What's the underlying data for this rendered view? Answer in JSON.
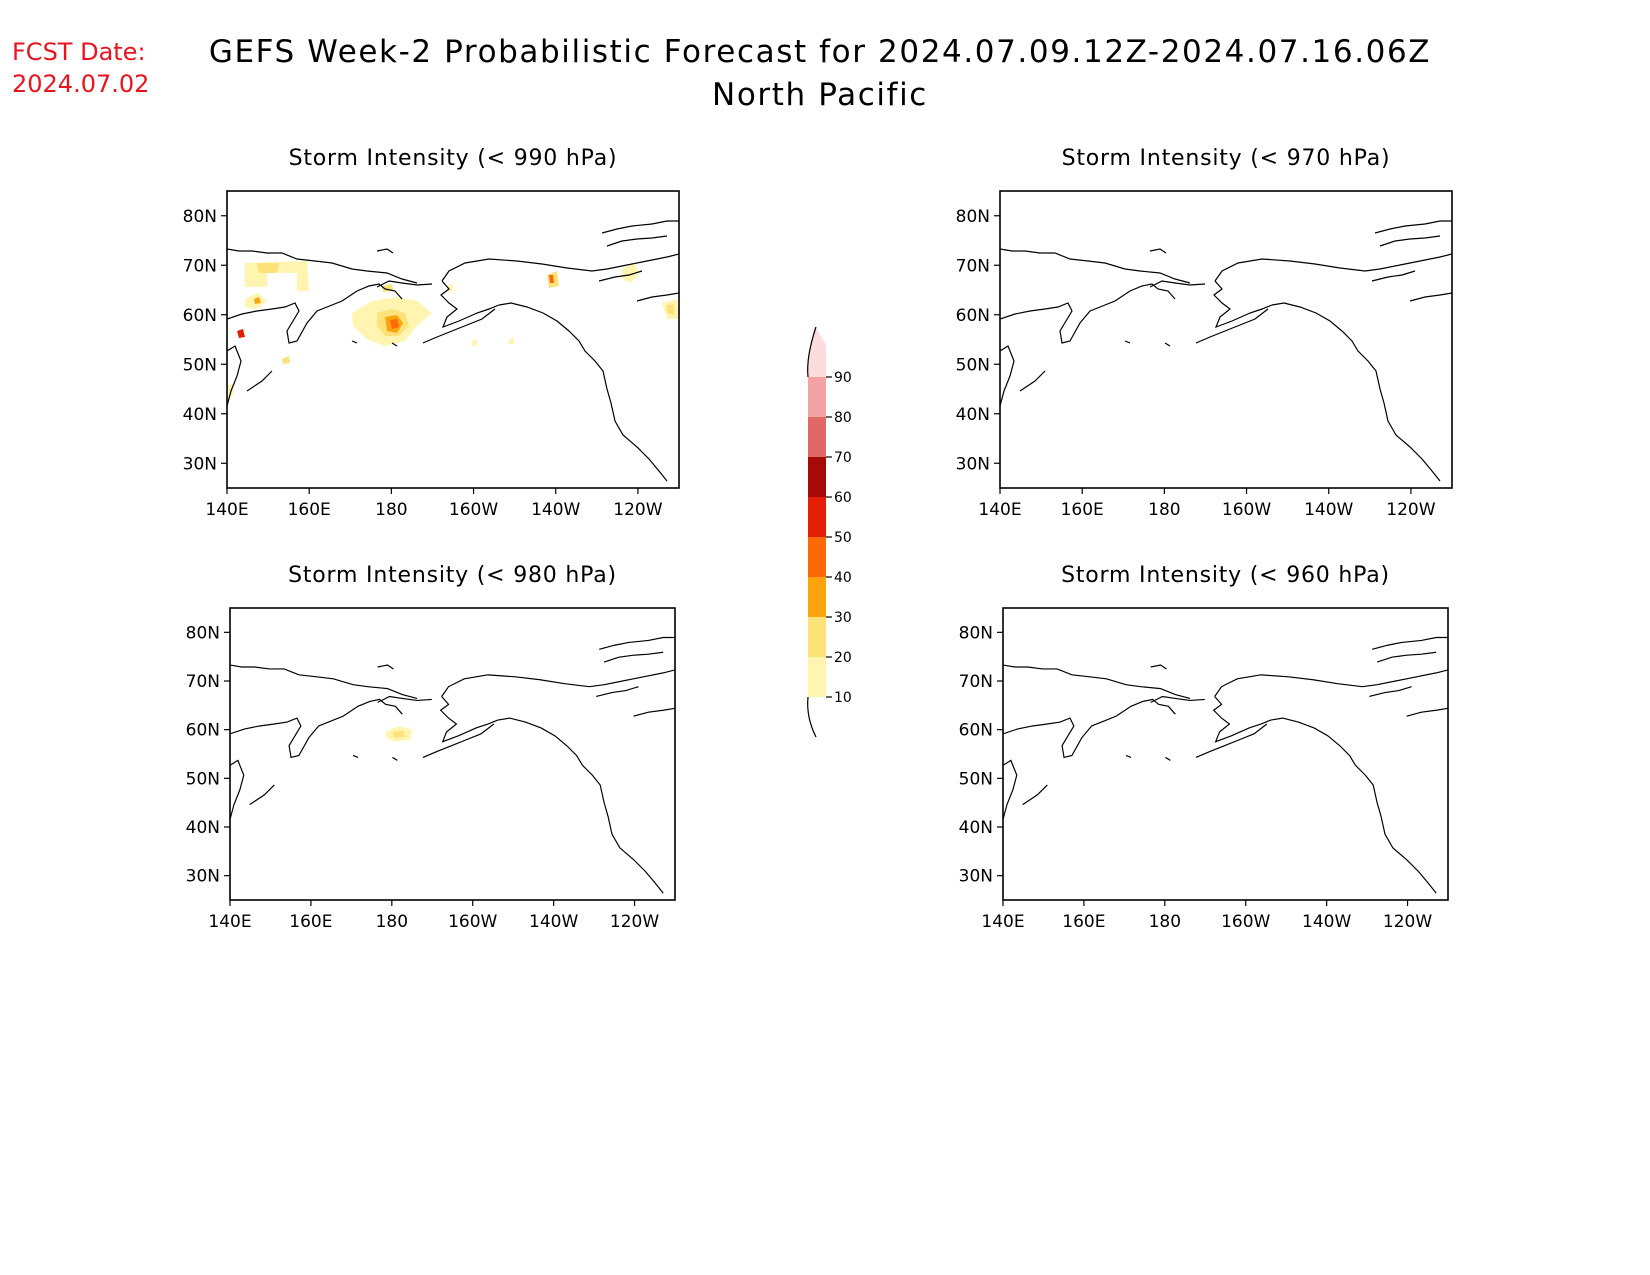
{
  "header": {
    "fcst_label": "FCST Date:",
    "fcst_date": "2024.07.02",
    "title_line1": "GEFS Week-2 Probabilistic Forecast for 2024.07.09.12Z-2024.07.16.06Z",
    "title_line2": "North Pacific",
    "fcst_color": "#e8141e"
  },
  "panels": [
    {
      "id": "p990",
      "title": "Storm Intensity (< 990 hPa)"
    },
    {
      "id": "p970",
      "title": "Storm Intensity (< 970 hPa)"
    },
    {
      "id": "p980",
      "title": "Storm Intensity (< 980 hPa)"
    },
    {
      "id": "p960",
      "title": "Storm Intensity (< 960 hPa)"
    }
  ],
  "axes": {
    "lat_labels": [
      "80N",
      "70N",
      "60N",
      "50N",
      "40N",
      "30N"
    ],
    "lon_labels": [
      "140E",
      "160E",
      "180",
      "160W",
      "140W",
      "120W"
    ]
  },
  "colorbar": {
    "levels": [
      "10",
      "20",
      "30",
      "40",
      "50",
      "60",
      "70",
      "80",
      "90"
    ],
    "colors": [
      "#fff5b0",
      "#fde27a",
      "#fca40e",
      "#fc6a08",
      "#e21e06",
      "#a50a08",
      "#e06866",
      "#f2a3a3",
      "#fcdcdc"
    ]
  }
}
